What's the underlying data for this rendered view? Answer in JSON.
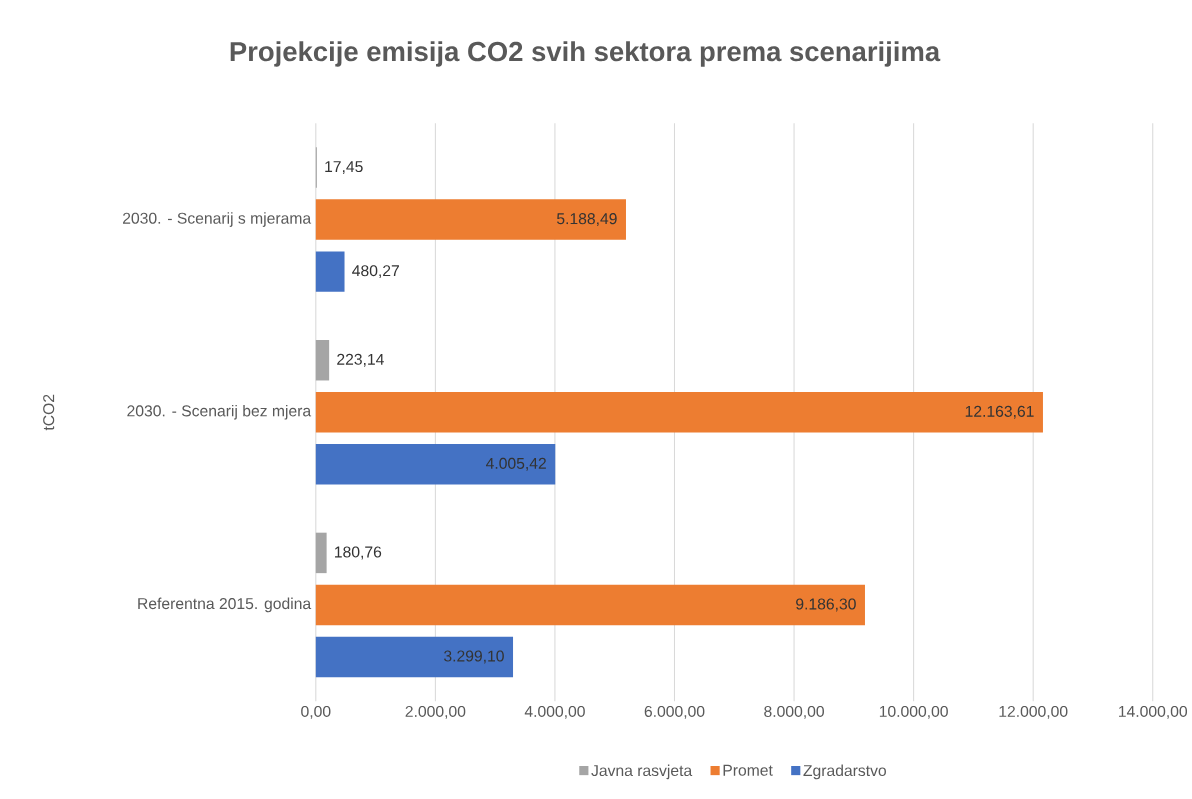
{
  "chart_data": {
    "type": "bar",
    "orientation": "horizontal",
    "title": "Projekcije emisija CO2 svih sektora prema scenarijima",
    "ylabel": "tCO2",
    "categories": [
      "2030. - Scenarij s mjerama",
      "2030. - Scenarij bez mjera",
      "Referentna 2015. godina"
    ],
    "series": [
      {
        "name": "Javna rasvjeta",
        "color": "#a5a5a5",
        "values": [
          17.45,
          223.14,
          180.76
        ],
        "value_labels": [
          "17,45",
          "223,14",
          "180,76"
        ]
      },
      {
        "name": "Promet",
        "color": "#ed7d31",
        "values": [
          5188.49,
          12163.61,
          9186.3
        ],
        "value_labels": [
          "5.188,49",
          "12.163,61",
          "9.186,30"
        ]
      },
      {
        "name": "Zgradarstvo",
        "color": "#4472c4",
        "values": [
          480.27,
          4005.42,
          3299.1
        ],
        "value_labels": [
          "480,27",
          "4.005,42",
          "3.299,10"
        ]
      }
    ],
    "xlim": [
      0,
      14000
    ],
    "xticks": [
      {
        "value": 0,
        "label": "0,00"
      },
      {
        "value": 2000,
        "label": "2.000,00"
      },
      {
        "value": 4000,
        "label": "4.000,00"
      },
      {
        "value": 6000,
        "label": "6.000,00"
      },
      {
        "value": 8000,
        "label": "8.000,00"
      },
      {
        "value": 10000,
        "label": "10.000,00"
      },
      {
        "value": 12000,
        "label": "12.000,00"
      },
      {
        "value": 14000,
        "label": "14.000,00"
      }
    ],
    "grid": "x",
    "legend": "bottom"
  }
}
